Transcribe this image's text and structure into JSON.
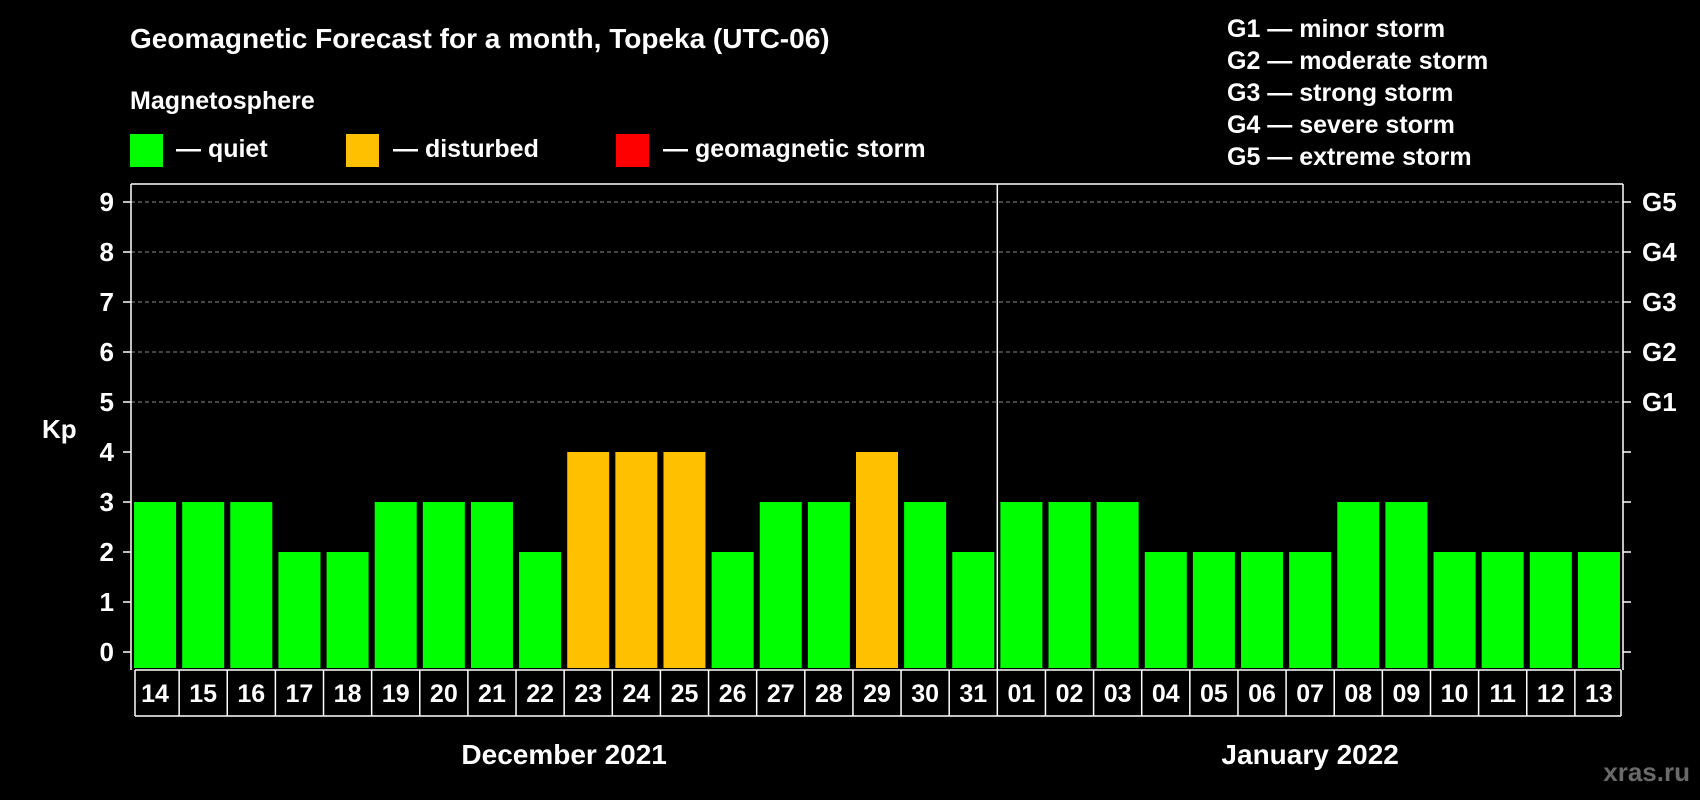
{
  "title": "Geomagnetic Forecast for a month, Topeka (UTC-06)",
  "legend": {
    "heading": "Magnetosphere",
    "items": [
      {
        "label": "— quiet",
        "color": "#00ff00"
      },
      {
        "label": "— disturbed",
        "color": "#ffc000"
      },
      {
        "label": "— geomagnetic storm",
        "color": "#ff0000"
      }
    ]
  },
  "storm_levels": [
    "G1 — minor storm",
    "G2 — moderate storm",
    "G3 — strong storm",
    "G4 — severe storm",
    "G5 — extreme storm"
  ],
  "watermark": "xras.ru",
  "chart_data": {
    "type": "bar",
    "title": "Geomagnetic Forecast for a month, Topeka (UTC-06)",
    "ylabel": "Kp",
    "xlabel": "",
    "ylim": [
      0,
      9
    ],
    "yticks": [
      0,
      1,
      2,
      3,
      4,
      5,
      6,
      7,
      8,
      9
    ],
    "ytick_labels": [
      "0",
      "1",
      "2",
      "3",
      "4",
      "5",
      "6",
      "7",
      "8",
      "9"
    ],
    "right_axis": [
      {
        "kp": 5,
        "label": "G1"
      },
      {
        "kp": 6,
        "label": "G2"
      },
      {
        "kp": 7,
        "label": "G3"
      },
      {
        "kp": 8,
        "label": "G4"
      },
      {
        "kp": 9,
        "label": "G5"
      }
    ],
    "grid": true,
    "categories": [
      "14",
      "15",
      "16",
      "17",
      "18",
      "19",
      "20",
      "21",
      "22",
      "23",
      "24",
      "25",
      "26",
      "27",
      "28",
      "29",
      "30",
      "31",
      "01",
      "02",
      "03",
      "04",
      "05",
      "06",
      "07",
      "08",
      "09",
      "10",
      "11",
      "12",
      "13"
    ],
    "values": [
      3,
      3,
      3,
      2,
      2,
      3,
      3,
      3,
      2,
      4,
      4,
      4,
      2,
      3,
      3,
      4,
      3,
      2,
      3,
      3,
      3,
      2,
      2,
      2,
      2,
      3,
      3,
      2,
      2,
      2,
      2
    ],
    "status": [
      "quiet",
      "quiet",
      "quiet",
      "quiet",
      "quiet",
      "quiet",
      "quiet",
      "quiet",
      "quiet",
      "disturbed",
      "disturbed",
      "disturbed",
      "quiet",
      "quiet",
      "quiet",
      "disturbed",
      "quiet",
      "quiet",
      "quiet",
      "quiet",
      "quiet",
      "quiet",
      "quiet",
      "quiet",
      "quiet",
      "quiet",
      "quiet",
      "quiet",
      "quiet",
      "quiet",
      "quiet"
    ],
    "status_colors": {
      "quiet": "#00ff00",
      "disturbed": "#ffc000",
      "storm": "#ff0000"
    },
    "months": [
      {
        "label": "December 2021",
        "count": 18
      },
      {
        "label": "January 2022",
        "count": 13
      }
    ]
  }
}
